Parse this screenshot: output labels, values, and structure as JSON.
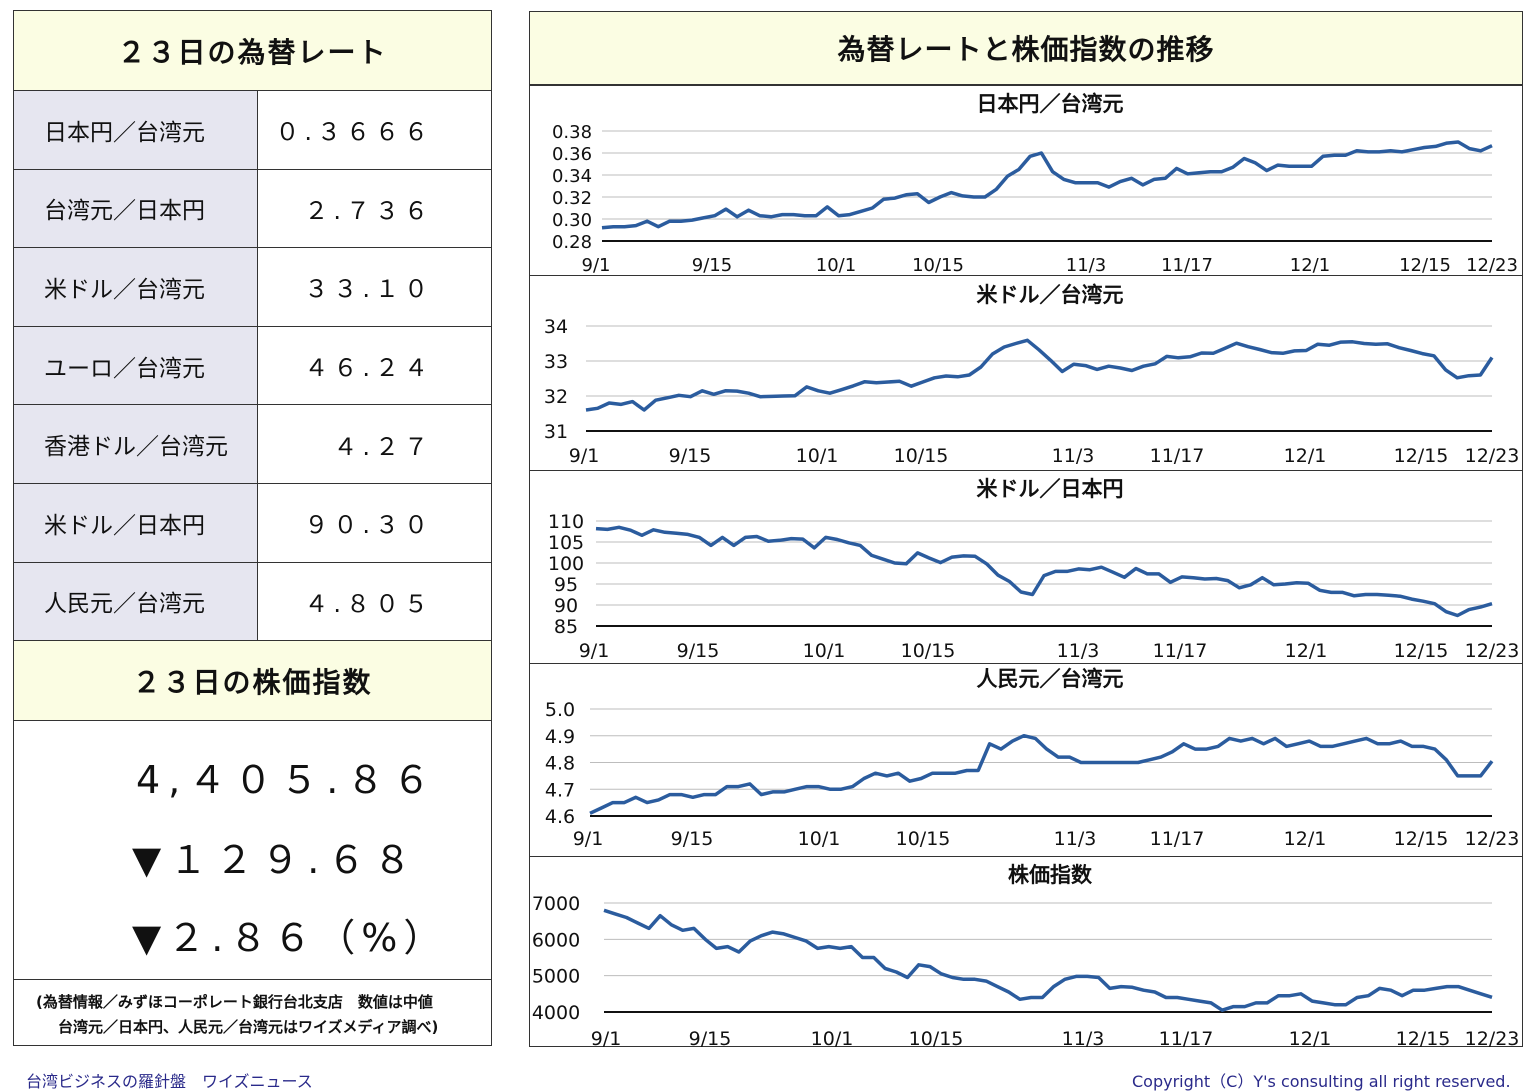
{
  "left": {
    "rates_title": "２３日の為替レート",
    "rates": [
      {
        "name": "日本円／台湾元",
        "value": "０.３６６６"
      },
      {
        "name": "台湾元／日本円",
        "value": "２.７３６"
      },
      {
        "name": "米ドル／台湾元",
        "value": "３３.１０"
      },
      {
        "name": "ユーロ／台湾元",
        "value": "４６.２４"
      },
      {
        "name": "香港ドル／台湾元",
        "value": "４.２７"
      },
      {
        "name": "米ドル／日本円",
        "value": "９０.３０"
      },
      {
        "name": "人民元／台湾元",
        "value": "４.８０５"
      }
    ],
    "stock_title": "２３日の株価指数",
    "stock_value": "4,４０５.８６",
    "stock_change": "▼１２９.６８",
    "stock_change_pct": "▼２.８６（%）",
    "note_line1": "(為替情報／みずほコーポレート銀行台北支店　数値は中値",
    "note_line2": "台湾元／日本円、人民元／台湾元はワイズメディア調べ)"
  },
  "right": {
    "title": "為替レートと株価指数の推移"
  },
  "footer": {
    "left": "台湾ビジネスの羅針盤　ワイズニュース",
    "right": "Copyright（C）Y's consulting all right reserved."
  },
  "colors": {
    "line": "#2b5c9e",
    "header_bg": "#fbfde3",
    "label_bg": "#e6e6f0"
  },
  "chart_data": [
    {
      "type": "line",
      "title": "日本円／台湾元",
      "xticks": [
        "9/1",
        "9/15",
        "10/1",
        "10/15",
        "11/3",
        "11/17",
        "12/1",
        "12/15",
        "12/23"
      ],
      "yticks": [
        "0.38",
        "0.36",
        "0.34",
        "0.32",
        "0.30",
        "0.28"
      ],
      "ylim": [
        0.28,
        0.38
      ],
      "values": [
        0.292,
        0.293,
        0.293,
        0.294,
        0.298,
        0.293,
        0.298,
        0.298,
        0.299,
        0.301,
        0.303,
        0.309,
        0.302,
        0.308,
        0.303,
        0.302,
        0.304,
        0.304,
        0.303,
        0.303,
        0.311,
        0.303,
        0.304,
        0.307,
        0.31,
        0.318,
        0.319,
        0.322,
        0.323,
        0.315,
        0.32,
        0.324,
        0.321,
        0.32,
        0.32,
        0.327,
        0.339,
        0.345,
        0.357,
        0.36,
        0.343,
        0.336,
        0.333,
        0.333,
        0.333,
        0.329,
        0.334,
        0.337,
        0.331,
        0.336,
        0.337,
        0.346,
        0.341,
        0.342,
        0.343,
        0.343,
        0.347,
        0.355,
        0.351,
        0.344,
        0.349,
        0.348,
        0.348,
        0.348,
        0.357,
        0.358,
        0.358,
        0.362,
        0.361,
        0.361,
        0.362,
        0.361,
        0.363,
        0.365,
        0.366,
        0.369,
        0.37,
        0.364,
        0.362,
        0.3666
      ]
    },
    {
      "type": "line",
      "title": "米ドル／台湾元",
      "xticks": [
        "9/1",
        "9/15",
        "10/1",
        "10/15",
        "11/3",
        "11/17",
        "12/1",
        "12/15",
        "12/23"
      ],
      "yticks": [
        "34",
        "33",
        "32",
        "31"
      ],
      "ylim": [
        31,
        34
      ],
      "values": [
        31.6,
        31.65,
        31.8,
        31.76,
        31.84,
        31.6,
        31.88,
        31.95,
        32.02,
        31.98,
        32.15,
        32.05,
        32.15,
        32.14,
        32.08,
        31.98,
        31.99,
        32.0,
        32.01,
        32.26,
        32.15,
        32.08,
        32.18,
        32.29,
        32.41,
        32.38,
        32.4,
        32.42,
        32.28,
        32.4,
        32.52,
        32.57,
        32.55,
        32.6,
        32.83,
        33.2,
        33.4,
        33.5,
        33.59,
        33.32,
        33.02,
        32.7,
        32.91,
        32.87,
        32.76,
        32.85,
        32.8,
        32.73,
        32.85,
        32.92,
        33.13,
        33.09,
        33.12,
        33.23,
        33.22,
        33.36,
        33.51,
        33.41,
        33.33,
        33.24,
        33.22,
        33.29,
        33.3,
        33.48,
        33.45,
        33.54,
        33.55,
        33.5,
        33.48,
        33.49,
        33.38,
        33.3,
        33.21,
        33.15,
        32.75,
        32.52,
        32.58,
        32.6,
        33.1
      ]
    },
    {
      "type": "line",
      "title": "米ドル／日本円",
      "xticks": [
        "9/1",
        "9/15",
        "10/1",
        "10/15",
        "11/3",
        "11/17",
        "12/1",
        "12/15",
        "12/23"
      ],
      "yticks": [
        "110",
        "105",
        "100",
        "95",
        "90",
        "85"
      ],
      "ylim": [
        85,
        110
      ],
      "values": [
        108.2,
        108.0,
        108.5,
        107.8,
        106.6,
        107.9,
        107.3,
        107.1,
        106.8,
        106.1,
        104.2,
        106.1,
        104.2,
        106.1,
        106.3,
        105.2,
        105.4,
        105.8,
        105.7,
        103.6,
        106.1,
        105.6,
        104.8,
        104.2,
        101.8,
        100.9,
        100.0,
        99.8,
        102.4,
        101.2,
        100.1,
        101.4,
        101.7,
        101.6,
        99.8,
        97.1,
        95.6,
        93.1,
        92.5,
        97.0,
        98.0,
        98.0,
        98.6,
        98.4,
        99.0,
        97.8,
        96.6,
        98.7,
        97.4,
        97.4,
        95.4,
        96.7,
        96.5,
        96.2,
        96.3,
        95.8,
        94.1,
        94.8,
        96.5,
        94.8,
        95.0,
        95.3,
        95.2,
        93.5,
        93.0,
        93.0,
        92.2,
        92.5,
        92.5,
        92.3,
        92.1,
        91.4,
        90.9,
        90.3,
        88.4,
        87.5,
        88.9,
        89.5,
        90.3
      ]
    },
    {
      "type": "line",
      "title": "人民元／台湾元",
      "xticks": [
        "9/1",
        "9/15",
        "10/1",
        "10/15",
        "11/3",
        "11/17",
        "12/1",
        "12/15",
        "12/23"
      ],
      "yticks": [
        "5.0",
        "4.9",
        "4.8",
        "4.7",
        "4.6"
      ],
      "ylim": [
        4.6,
        5.0
      ],
      "values": [
        4.61,
        4.63,
        4.65,
        4.65,
        4.67,
        4.65,
        4.66,
        4.68,
        4.68,
        4.67,
        4.68,
        4.68,
        4.71,
        4.71,
        4.72,
        4.68,
        4.69,
        4.69,
        4.7,
        4.71,
        4.71,
        4.7,
        4.7,
        4.71,
        4.74,
        4.76,
        4.75,
        4.76,
        4.73,
        4.74,
        4.76,
        4.76,
        4.76,
        4.77,
        4.77,
        4.87,
        4.85,
        4.88,
        4.9,
        4.89,
        4.85,
        4.82,
        4.82,
        4.8,
        4.8,
        4.8,
        4.8,
        4.8,
        4.8,
        4.81,
        4.82,
        4.84,
        4.87,
        4.85,
        4.85,
        4.86,
        4.89,
        4.88,
        4.89,
        4.87,
        4.89,
        4.86,
        4.87,
        4.88,
        4.86,
        4.86,
        4.87,
        4.88,
        4.89,
        4.87,
        4.87,
        4.88,
        4.86,
        4.86,
        4.85,
        4.81,
        4.75,
        4.75,
        4.75,
        4.805
      ]
    },
    {
      "type": "line",
      "title": "株価指数",
      "xticks": [
        "9/1",
        "9/15",
        "10/1",
        "10/15",
        "11/3",
        "11/17",
        "12/1",
        "12/15",
        "12/23"
      ],
      "yticks": [
        "7000",
        "6000",
        "5000",
        "4000"
      ],
      "ylim": [
        4000,
        7000
      ],
      "values": [
        6800,
        6700,
        6600,
        6450,
        6300,
        6650,
        6400,
        6250,
        6300,
        6000,
        5750,
        5800,
        5650,
        5950,
        6100,
        6200,
        6150,
        6050,
        5950,
        5750,
        5800,
        5750,
        5800,
        5500,
        5500,
        5200,
        5100,
        4950,
        5300,
        5250,
        5050,
        4950,
        4900,
        4900,
        4850,
        4700,
        4550,
        4350,
        4400,
        4400,
        4700,
        4900,
        4980,
        4980,
        4950,
        4650,
        4700,
        4680,
        4600,
        4550,
        4400,
        4400,
        4350,
        4300,
        4250,
        4050,
        4150,
        4150,
        4250,
        4250,
        4450,
        4450,
        4500,
        4300,
        4250,
        4200,
        4200,
        4400,
        4450,
        4650,
        4600,
        4450,
        4600,
        4600,
        4650,
        4700,
        4700,
        4600,
        4500,
        4405.86
      ]
    }
  ]
}
